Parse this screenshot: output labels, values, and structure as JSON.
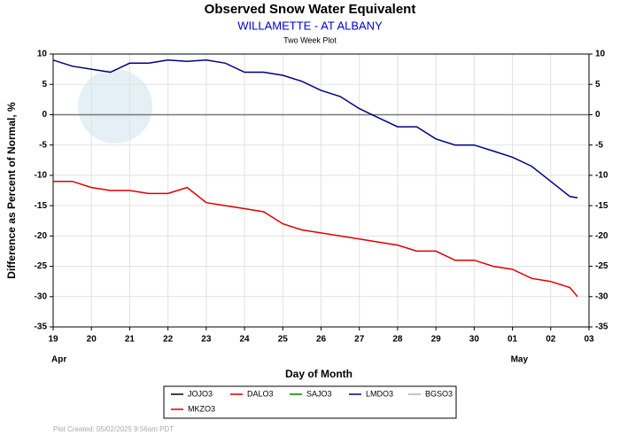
{
  "chart_data": {
    "type": "line",
    "title": "Observed Snow Water Equivalent",
    "subtitle": "WILLAMETTE - AT ALBANY",
    "subtitle2": "Two Week Plot",
    "xlabel": "Day of Month",
    "ylabel": "Difference as Percent of Normal, %",
    "footer": "Plot Created: 05/02/2025 9:56am PDT",
    "x": [
      0,
      0.5,
      1,
      1.5,
      2,
      2.5,
      3,
      3.5,
      4,
      4.5,
      5,
      5.5,
      6,
      6.5,
      7,
      7.5,
      8,
      8.5,
      9,
      9.5,
      10,
      10.5,
      11,
      11.5,
      12,
      12.5,
      13,
      13.5,
      13.7
    ],
    "xlim": [
      0,
      14
    ],
    "xticks": [
      {
        "value": 0,
        "label": "19"
      },
      {
        "value": 1,
        "label": "20"
      },
      {
        "value": 2,
        "label": "21"
      },
      {
        "value": 3,
        "label": "22"
      },
      {
        "value": 4,
        "label": "23"
      },
      {
        "value": 5,
        "label": "24"
      },
      {
        "value": 6,
        "label": "25"
      },
      {
        "value": 7,
        "label": "26"
      },
      {
        "value": 8,
        "label": "27"
      },
      {
        "value": 9,
        "label": "28"
      },
      {
        "value": 10,
        "label": "29"
      },
      {
        "value": 11,
        "label": "30"
      },
      {
        "value": 12,
        "label": "01"
      },
      {
        "value": 13,
        "label": "02"
      },
      {
        "value": 14,
        "label": "03"
      }
    ],
    "month_labels": [
      {
        "value": 0,
        "label": "Apr"
      },
      {
        "value": 12,
        "label": "May"
      }
    ],
    "ylim": [
      -35,
      10
    ],
    "yticks": [
      -35,
      -30,
      -25,
      -20,
      -15,
      -10,
      -5,
      0,
      5,
      10
    ],
    "grid": true,
    "series": [
      {
        "name": "JOJO3",
        "color": "#000000",
        "values": [
          null,
          null,
          null,
          null,
          null,
          null,
          null,
          null,
          null,
          null,
          null,
          null,
          null,
          null,
          null,
          null,
          null,
          null,
          null,
          null,
          null,
          null,
          null,
          null,
          null,
          null,
          null,
          null,
          null
        ]
      },
      {
        "name": "DALO3",
        "color": "#cc0000",
        "values": [
          null,
          null,
          null,
          null,
          null,
          null,
          null,
          null,
          null,
          null,
          null,
          null,
          null,
          null,
          null,
          null,
          null,
          null,
          null,
          null,
          null,
          null,
          null,
          null,
          null,
          null,
          null,
          null,
          null
        ]
      },
      {
        "name": "SAJO3",
        "color": "#008000",
        "values": [
          null,
          null,
          null,
          null,
          null,
          null,
          null,
          null,
          null,
          null,
          null,
          null,
          null,
          null,
          null,
          null,
          null,
          null,
          null,
          null,
          null,
          null,
          null,
          null,
          null,
          null,
          null,
          null,
          null
        ]
      },
      {
        "name": "LMDO3",
        "color": "#000080",
        "values": [
          9,
          8,
          7.5,
          7,
          8.5,
          8.5,
          9,
          8.8,
          9,
          8.5,
          7,
          7,
          6.5,
          5.5,
          4,
          3,
          1,
          -0.5,
          -2,
          -2,
          -4,
          -5,
          -5,
          -6,
          -7,
          -8.5,
          -11,
          -13.5,
          -13.7
        ]
      },
      {
        "name": "BGSO3",
        "color": "#b0b0b0",
        "values": [
          null,
          null,
          null,
          null,
          null,
          null,
          null,
          null,
          null,
          null,
          null,
          null,
          null,
          null,
          null,
          null,
          null,
          null,
          null,
          null,
          null,
          null,
          null,
          null,
          null,
          null,
          null,
          null,
          null
        ]
      },
      {
        "name": "MKZO3",
        "color": "#dd0000",
        "values": [
          -11,
          -11,
          -12,
          -12.5,
          -12.5,
          -13,
          -13,
          -12,
          -14.5,
          -15,
          -15.5,
          -16,
          -18,
          -19,
          -19.5,
          -20,
          -20.5,
          -21,
          -21.5,
          -22.5,
          -22.5,
          -24,
          -24,
          -25,
          -25.5,
          -27,
          -27.5,
          -28.5,
          -30
        ]
      }
    ]
  }
}
